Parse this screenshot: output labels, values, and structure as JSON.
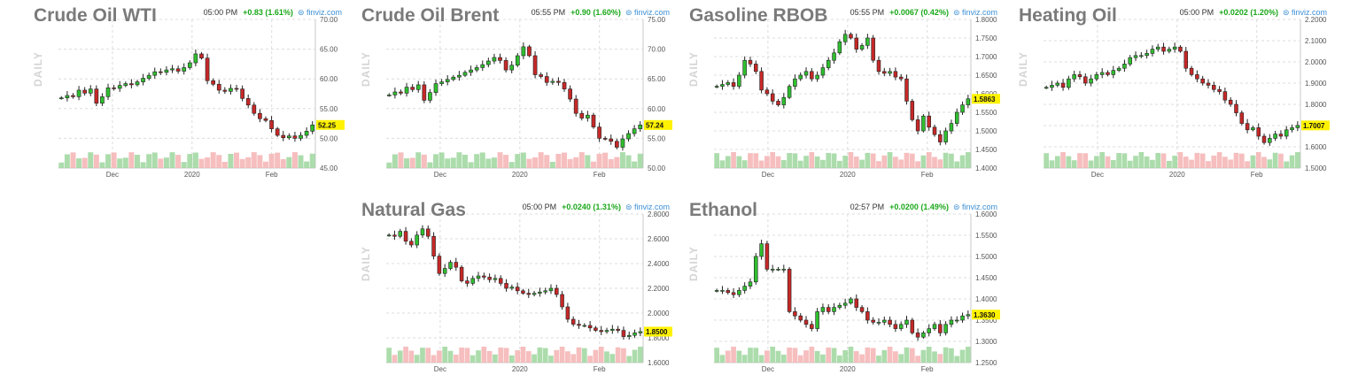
{
  "chart_data": [
    {
      "type": "candlestick",
      "title": "Crude Oil WTI",
      "time": "05:00 PM",
      "change": "+0.83 (1.61%)",
      "source": "finviz.com",
      "side_label": "DAILY",
      "x_ticks": [
        "Dec",
        "2020",
        "Feb"
      ],
      "y_ticks": [
        "70.00",
        "65.00",
        "60.00",
        "55.00",
        "50.00",
        "45.00"
      ],
      "ylim": [
        45,
        70
      ],
      "last_price": "52.25",
      "close_series": [
        56.8,
        57.2,
        57.0,
        58.1,
        57.6,
        58.3,
        55.9,
        57.0,
        58.5,
        58.4,
        58.9,
        59.2,
        59.0,
        59.5,
        60.1,
        60.6,
        61.2,
        61.1,
        61.5,
        61.7,
        61.3,
        61.9,
        62.7,
        64.2,
        63.5,
        59.7,
        59.1,
        58.1,
        57.9,
        58.4,
        58.3,
        56.7,
        55.6,
        54.2,
        53.3,
        53.0,
        51.6,
        50.5,
        50.1,
        50.4,
        50.0,
        50.5,
        51.2,
        52.25
      ],
      "grid": true
    },
    {
      "type": "candlestick",
      "title": "Crude Oil Brent",
      "time": "05:55 PM",
      "change": "+0.90 (1.60%)",
      "source": "finviz.com",
      "side_label": "DAILY",
      "x_ticks": [
        "Dec",
        "2020",
        "Feb"
      ],
      "y_ticks": [
        "75.00",
        "70.00",
        "65.00",
        "60.00",
        "55.00",
        "50.00"
      ],
      "ylim": [
        50,
        75
      ],
      "last_price": "57.24",
      "close_series": [
        62.3,
        62.8,
        62.6,
        63.6,
        63.2,
        64.0,
        61.4,
        62.7,
        64.2,
        64.5,
        64.9,
        65.3,
        65.6,
        66.1,
        66.5,
        66.9,
        67.4,
        68.0,
        68.6,
        68.1,
        66.5,
        67.3,
        68.9,
        70.4,
        68.9,
        65.7,
        65.4,
        64.4,
        64.6,
        64.4,
        63.3,
        61.6,
        59.2,
        58.4,
        58.9,
        56.9,
        55.0,
        54.9,
        54.5,
        53.5,
        54.9,
        55.8,
        56.6,
        57.24
      ],
      "grid": true
    },
    {
      "type": "candlestick",
      "title": "Gasoline RBOB",
      "time": "05:55 PM",
      "change": "+0.0067 (0.42%)",
      "source": "finviz.com",
      "side_label": "DAILY",
      "x_ticks": [
        "Dec",
        "2020",
        "Feb"
      ],
      "y_ticks": [
        "1.8000",
        "1.7500",
        "1.7000",
        "1.6500",
        "1.6000",
        "1.5500",
        "1.5000",
        "1.4500",
        "1.4000"
      ],
      "ylim": [
        1.4,
        1.8
      ],
      "last_price": "1.5863",
      "close_series": [
        1.62,
        1.625,
        1.63,
        1.62,
        1.65,
        1.69,
        1.68,
        1.66,
        1.61,
        1.6,
        1.58,
        1.57,
        1.59,
        1.62,
        1.64,
        1.65,
        1.66,
        1.64,
        1.65,
        1.67,
        1.69,
        1.71,
        1.74,
        1.76,
        1.75,
        1.72,
        1.73,
        1.75,
        1.69,
        1.66,
        1.655,
        1.66,
        1.645,
        1.64,
        1.58,
        1.53,
        1.5,
        1.54,
        1.51,
        1.49,
        1.47,
        1.5,
        1.52,
        1.55,
        1.57,
        1.5863
      ],
      "grid": true
    },
    {
      "type": "candlestick",
      "title": "Heating Oil",
      "time": "05:00 PM",
      "change": "+0.0202 (1.20%)",
      "source": "finviz.com",
      "side_label": "DAILY",
      "x_ticks": [
        "Dec",
        "2020",
        "Feb"
      ],
      "y_ticks": [
        "2.2000",
        "2.1000",
        "2.0000",
        "1.9000",
        "1.8000",
        "1.7000",
        "1.6000",
        "1.5000"
      ],
      "ylim": [
        1.5,
        2.2
      ],
      "last_price": "1.7007",
      "close_series": [
        1.88,
        1.89,
        1.9,
        1.88,
        1.92,
        1.94,
        1.93,
        1.9,
        1.92,
        1.94,
        1.95,
        1.94,
        1.96,
        1.97,
        1.99,
        2.02,
        2.03,
        2.03,
        2.04,
        2.06,
        2.07,
        2.05,
        2.06,
        2.07,
        2.05,
        1.97,
        1.94,
        1.92,
        1.9,
        1.89,
        1.87,
        1.86,
        1.82,
        1.8,
        1.76,
        1.71,
        1.68,
        1.69,
        1.65,
        1.62,
        1.64,
        1.66,
        1.65,
        1.68,
        1.69,
        1.7007
      ],
      "grid": true
    },
    {
      "type": "candlestick",
      "title": "Natural Gas",
      "time": "05:00 PM",
      "change": "+0.0240 (1.31%)",
      "source": "finviz.com",
      "side_label": "DAILY",
      "x_ticks": [
        "Dec",
        "2020",
        "Feb"
      ],
      "y_ticks": [
        "2.8000",
        "2.6000",
        "2.4000",
        "2.2000",
        "2.0000",
        "1.8000",
        "1.6000"
      ],
      "ylim": [
        1.6,
        2.8
      ],
      "last_price": "1.8500",
      "close_series": [
        2.63,
        2.62,
        2.66,
        2.58,
        2.55,
        2.63,
        2.68,
        2.62,
        2.46,
        2.32,
        2.36,
        2.41,
        2.37,
        2.26,
        2.24,
        2.28,
        2.3,
        2.29,
        2.27,
        2.28,
        2.24,
        2.2,
        2.21,
        2.18,
        2.16,
        2.15,
        2.16,
        2.17,
        2.18,
        2.2,
        2.15,
        2.05,
        1.95,
        1.91,
        1.9,
        1.9,
        1.88,
        1.86,
        1.85,
        1.86,
        1.87,
        1.86,
        1.81,
        1.82,
        1.84,
        1.85
      ],
      "grid": true
    },
    {
      "type": "candlestick",
      "title": "Ethanol",
      "time": "02:57 PM",
      "change": "+0.0200 (1.49%)",
      "source": "finviz.com",
      "side_label": "DAILY",
      "x_ticks": [
        "Dec",
        "2020",
        "Feb"
      ],
      "y_ticks": [
        "1.6000",
        "1.5500",
        "1.5000",
        "1.4500",
        "1.4000",
        "1.3500",
        "1.3000",
        "1.2500"
      ],
      "ylim": [
        1.25,
        1.6
      ],
      "last_price": "1.3630",
      "close_series": [
        1.42,
        1.42,
        1.415,
        1.41,
        1.42,
        1.43,
        1.44,
        1.5,
        1.53,
        1.47,
        1.47,
        1.47,
        1.47,
        1.37,
        1.36,
        1.35,
        1.34,
        1.33,
        1.37,
        1.38,
        1.37,
        1.38,
        1.385,
        1.39,
        1.4,
        1.38,
        1.37,
        1.35,
        1.345,
        1.345,
        1.35,
        1.34,
        1.33,
        1.34,
        1.35,
        1.32,
        1.31,
        1.32,
        1.33,
        1.34,
        1.32,
        1.34,
        1.35,
        1.35,
        1.36,
        1.363
      ],
      "grid": true
    }
  ]
}
